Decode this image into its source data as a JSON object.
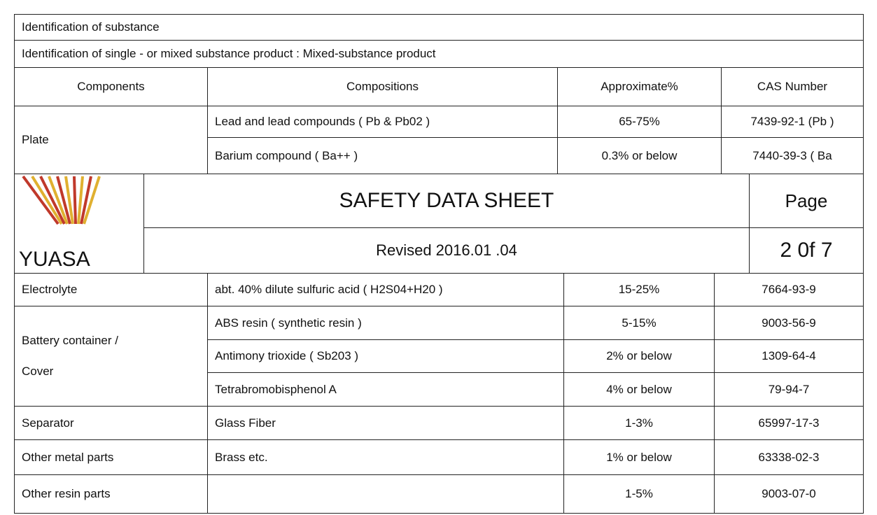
{
  "top_table": {
    "section": "Identification of substance",
    "identification": "Identification of single - or mixed substance product : Mixed-substance product",
    "headers": [
      "Components",
      "Compositions",
      "Approximate%",
      "CAS Number"
    ],
    "groups": [
      {
        "component": "Plate",
        "items": [
          {
            "composition": "Lead and lead compounds ( Pb & Pb02 )",
            "approx": "65-75%",
            "cas": "7439-92-1 (Pb )"
          },
          {
            "composition": "Barium compound ( Ba++ )",
            "approx": "0.3% or below",
            "cas": "7440-39-3 ( Ba"
          }
        ]
      }
    ]
  },
  "header": {
    "logo_text": "YUASA",
    "title": "SAFETY DATA SHEET",
    "revised": "Revised 2016.01 .04",
    "page_label": "Page",
    "page_number": "2 0f 7"
  },
  "bottom_table": {
    "groups": [
      {
        "component": "Electrolyte",
        "items": [
          {
            "composition": "abt. 40% dilute sulfuric acid ( H2S04+H20 )",
            "approx": "15-25%",
            "cas": "7664-93-9"
          }
        ]
      },
      {
        "component": "Battery container / Cover",
        "items": [
          {
            "composition": "ABS resin ( synthetic resin )",
            "approx": "5-15%",
            "cas": "9003-56-9"
          },
          {
            "composition": "Antimony trioxide ( Sb203 )",
            "approx": "2% or below",
            "cas": "1309-64-4"
          },
          {
            "composition": "Tetrabromobisphenol A",
            "approx": "4% or below",
            "cas": "79-94-7"
          }
        ]
      },
      {
        "component": "Separator",
        "items": [
          {
            "composition": "Glass Fiber",
            "approx": "1-3%",
            "cas": "65997-17-3"
          }
        ]
      },
      {
        "component": "Other metal parts",
        "items": [
          {
            "composition": "Brass etc.",
            "approx": "1% or below",
            "cas": "63338-02-3"
          }
        ]
      },
      {
        "component": "Other resin parts",
        "items": [
          {
            "approx": "1-5%",
            "cas": "9003-07-0"
          }
        ]
      }
    ]
  }
}
